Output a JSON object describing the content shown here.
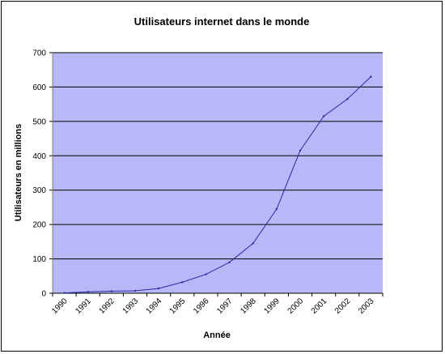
{
  "chart_data": {
    "type": "line",
    "title": "Utilisateurs internet dans le monde",
    "xlabel": "Année",
    "ylabel": "Utilisateurs en millions",
    "categories": [
      "1990",
      "1991",
      "1992",
      "1993",
      "1994",
      "1995",
      "1996",
      "1997",
      "1998",
      "1999",
      "2000",
      "2001",
      "2002",
      "2003"
    ],
    "series": [
      {
        "values": [
          1,
          4,
          6,
          7,
          14,
          32,
          55,
          90,
          145,
          245,
          415,
          515,
          565,
          630
        ]
      }
    ],
    "ylim": [
      0,
      700
    ],
    "yticks": [
      0,
      100,
      200,
      300,
      400,
      500,
      600,
      700
    ],
    "grid": true,
    "legend": "none",
    "colors": {
      "plot_background": "#b8b8f8",
      "line": "#2a2aa0",
      "gridline": "#000000"
    }
  }
}
